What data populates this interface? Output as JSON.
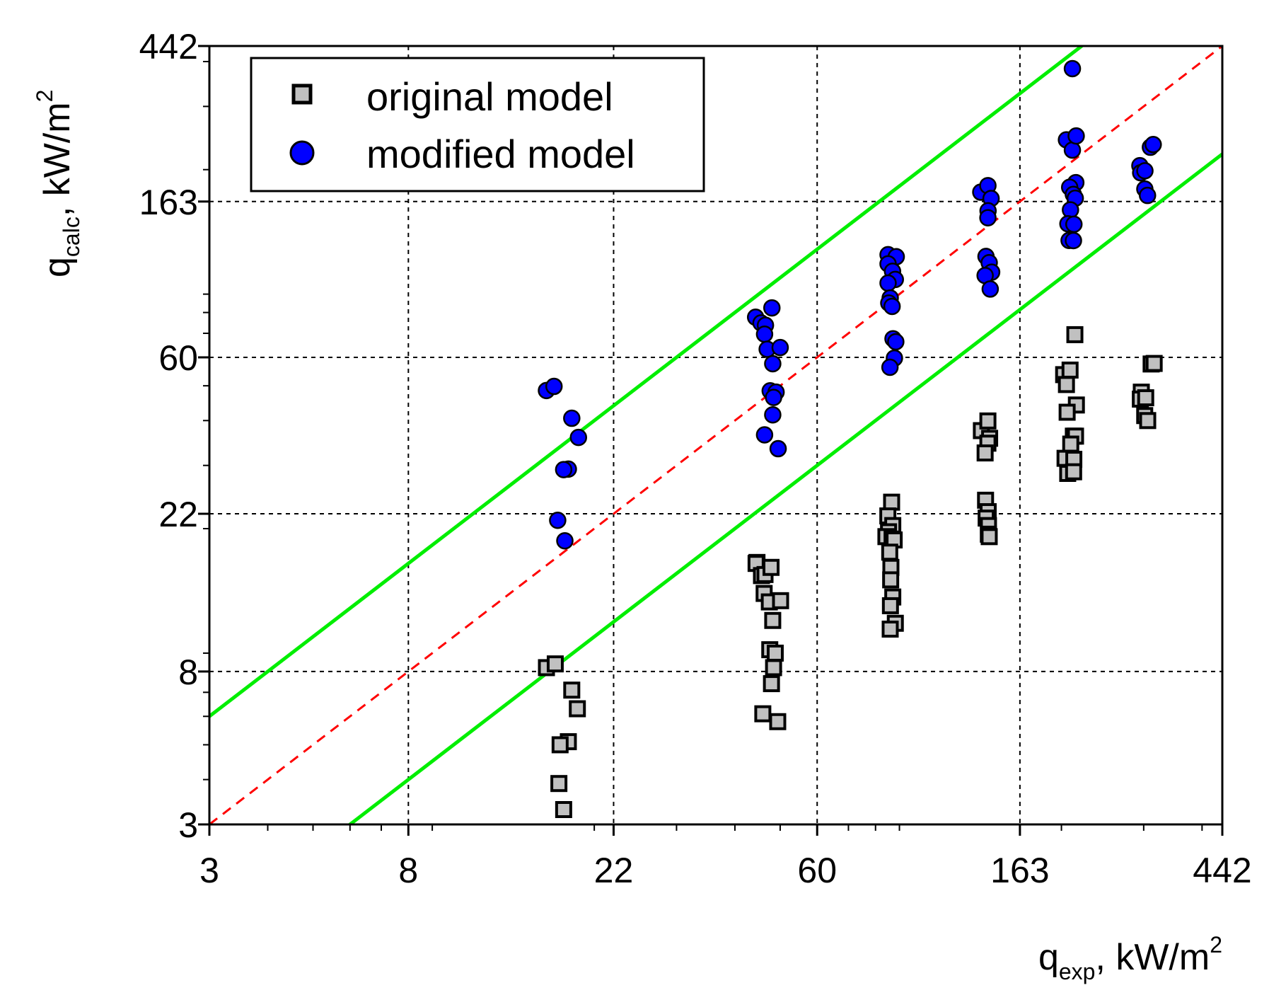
{
  "chart_data": {
    "type": "scatter",
    "x_scale": "log",
    "y_scale": "log",
    "xlim": [
      3,
      442
    ],
    "ylim": [
      3,
      442
    ],
    "x_ticks": [
      3,
      8,
      22,
      60,
      163,
      442
    ],
    "y_ticks": [
      3,
      8,
      22,
      60,
      163,
      442
    ],
    "x_tick_labels": [
      "3",
      "8",
      "22",
      "60",
      "163",
      "442"
    ],
    "y_tick_labels": [
      "3",
      "8",
      "22",
      "60",
      "163",
      "442"
    ],
    "xlabel": {
      "base": "q",
      "sub": "exp",
      "unit": ", kW/m",
      "sup": "2"
    },
    "ylabel": {
      "base": "q",
      "sub": "calc",
      "unit": ", kW/m",
      "sup": "2"
    },
    "grid": true,
    "legend_position": "top-left",
    "legend": [
      {
        "label": "original model",
        "marker": "square",
        "color": "#c0c0c0"
      },
      {
        "label": "modified model",
        "marker": "circle",
        "color": "#0000ff"
      }
    ],
    "reference_lines": [
      {
        "name": "equality",
        "factor": 1,
        "style": "dashed",
        "color": "#ff0000"
      },
      {
        "name": "upper bound",
        "factor": 2,
        "style": "solid",
        "color": "#00ee00"
      },
      {
        "name": "lower bound",
        "factor": 0.5,
        "style": "solid",
        "color": "#00ee00"
      }
    ],
    "series": [
      {
        "name": "original model",
        "marker": "square",
        "color": "#c0c0c0",
        "points": [
          [
            15.8,
            8.2
          ],
          [
            16.5,
            8.4
          ],
          [
            17.9,
            7.1
          ],
          [
            18.4,
            6.3
          ],
          [
            17.6,
            5.1
          ],
          [
            16.9,
            5.0
          ],
          [
            16.8,
            3.9
          ],
          [
            17.2,
            3.3
          ],
          [
            44.6,
            16.1
          ],
          [
            44.4,
            16.0
          ],
          [
            45.6,
            14.8
          ],
          [
            46.4,
            14.9
          ],
          [
            47.8,
            15.6
          ],
          [
            46.2,
            13.2
          ],
          [
            47.4,
            12.5
          ],
          [
            50.1,
            12.6
          ],
          [
            48.2,
            11.1
          ],
          [
            47.5,
            9.2
          ],
          [
            48.8,
            9.0
          ],
          [
            48.4,
            8.2
          ],
          [
            47.9,
            7.4
          ],
          [
            45.9,
            6.1
          ],
          [
            49.4,
            5.8
          ],
          [
            86.6,
            23.7
          ],
          [
            85.0,
            21.7
          ],
          [
            87.1,
            20.4
          ],
          [
            85.3,
            19.6
          ],
          [
            84.2,
            19.0
          ],
          [
            86.8,
            18.7
          ],
          [
            87.7,
            18.6
          ],
          [
            85.8,
            17.2
          ],
          [
            86.3,
            15.6
          ],
          [
            86.2,
            14.4
          ],
          [
            87.1,
            12.9
          ],
          [
            86.1,
            12.2
          ],
          [
            88.2,
            10.9
          ],
          [
            86.0,
            10.5
          ],
          [
            134.8,
            37.5
          ],
          [
            139.2,
            39.9
          ],
          [
            140.4,
            35.7
          ],
          [
            139.2,
            34.6
          ],
          [
            137.3,
            32.5
          ],
          [
            137.6,
            24.0
          ],
          [
            139.4,
            22.3
          ],
          [
            138.0,
            21.4
          ],
          [
            139.6,
            20.4
          ],
          [
            139.5,
            19.3
          ],
          [
            140.1,
            19.0
          ],
          [
            202.2,
            53.7
          ],
          [
            205.0,
            50.4
          ],
          [
            208.7,
            55.3
          ],
          [
            213.7,
            69.4
          ],
          [
            215.3,
            44.2
          ],
          [
            205.7,
            42.2
          ],
          [
            212.1,
            36.2
          ],
          [
            214.4,
            36.2
          ],
          [
            209.4,
            34.4
          ],
          [
            203.6,
            31.4
          ],
          [
            212.6,
            31.2
          ],
          [
            206.3,
            28.5
          ],
          [
            212.4,
            28.8
          ],
          [
            296.5,
            48.0
          ],
          [
            295.1,
            45.9
          ],
          [
            303.0,
            46.3
          ],
          [
            301.5,
            41.3
          ],
          [
            306.0,
            40.0
          ],
          [
            311.2,
            57.5
          ],
          [
            315.9,
            57.7
          ]
        ]
      },
      {
        "name": "modified model",
        "marker": "circle",
        "color": "#0000ff",
        "points": [
          [
            15.8,
            48.5
          ],
          [
            16.4,
            49.8
          ],
          [
            17.9,
            40.6
          ],
          [
            18.5,
            35.9
          ],
          [
            17.6,
            29.3
          ],
          [
            17.2,
            29.2
          ],
          [
            16.7,
            21.1
          ],
          [
            17.3,
            18.5
          ],
          [
            44.3,
            77.6
          ],
          [
            45.5,
            74.8
          ],
          [
            46.5,
            73.7
          ],
          [
            46.3,
            69.6
          ],
          [
            48.0,
            82.4
          ],
          [
            46.9,
            63.2
          ],
          [
            50.0,
            63.9
          ],
          [
            48.2,
            57.6
          ],
          [
            47.6,
            48.4
          ],
          [
            49.0,
            48.0
          ],
          [
            48.4,
            46.4
          ],
          [
            48.2,
            41.5
          ],
          [
            46.3,
            36.5
          ],
          [
            49.5,
            33.4
          ],
          [
            85.1,
            115.9
          ],
          [
            88.6,
            114.4
          ],
          [
            85.1,
            109.3
          ],
          [
            87.0,
            104.2
          ],
          [
            88.2,
            98.9
          ],
          [
            85.1,
            96.6
          ],
          [
            86.0,
            87.8
          ],
          [
            85.4,
            85.0
          ],
          [
            86.8,
            83.2
          ],
          [
            87.2,
            67.6
          ],
          [
            88.4,
            66.3
          ],
          [
            87.8,
            59.7
          ],
          [
            85.9,
            56.3
          ],
          [
            134.4,
            173.1
          ],
          [
            139.2,
            180.5
          ],
          [
            141.4,
            166.2
          ],
          [
            139.3,
            153.6
          ],
          [
            139.2,
            146.9
          ],
          [
            137.9,
            114.6
          ],
          [
            140.1,
            110.1
          ],
          [
            141.8,
            103.6
          ],
          [
            137.3,
            101.4
          ],
          [
            140.8,
            93.0
          ],
          [
            205.0,
            242.1
          ],
          [
            211.1,
            226.7
          ],
          [
            215.1,
            248.2
          ],
          [
            211.1,
            382.3
          ],
          [
            214.7,
            184.0
          ],
          [
            208.3,
            178.6
          ],
          [
            212.1,
            170.6
          ],
          [
            214.1,
            166.5
          ],
          [
            209.1,
            154.5
          ],
          [
            206.5,
            141.3
          ],
          [
            212.7,
            140.9
          ],
          [
            207.7,
            127.0
          ],
          [
            212.2,
            126.9
          ],
          [
            294.4,
            205.1
          ],
          [
            295.6,
            196.0
          ],
          [
            301.8,
            198.5
          ],
          [
            301.7,
            176.6
          ],
          [
            305.7,
            169.5
          ],
          [
            310.1,
            230.9
          ],
          [
            314.4,
            234.9
          ]
        ]
      }
    ]
  }
}
